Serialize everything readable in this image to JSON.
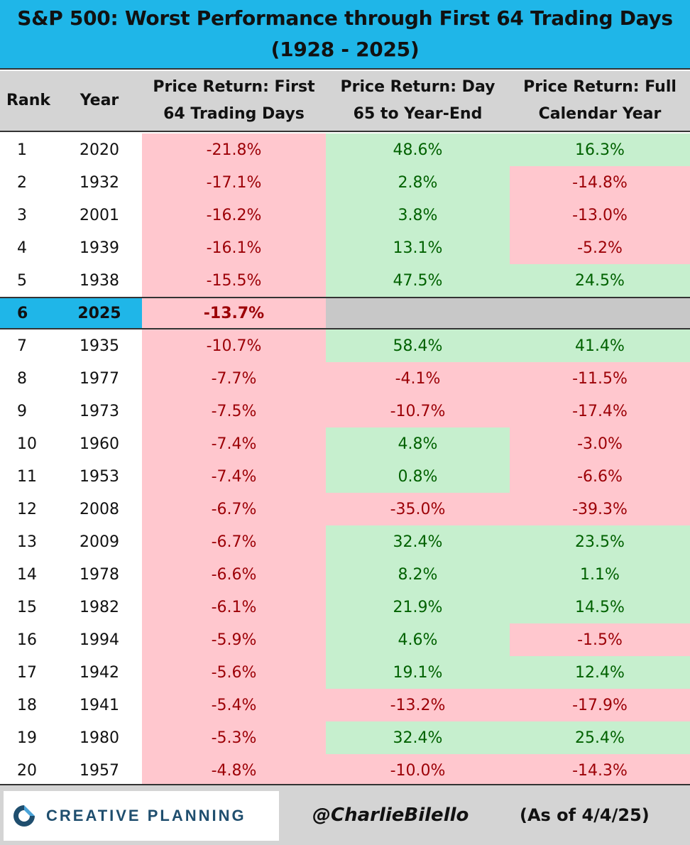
{
  "header": {
    "title_line1": "S&P 500: Worst Performance through First 64 Trading Days",
    "title_line2": "(1928 - 2025)"
  },
  "columns": {
    "rank": "Rank",
    "year": "Year",
    "c1_line1": "Price Return: First",
    "c1_line2": "64 Trading Days",
    "c2_line1": "Price Return: Day",
    "c2_line2": "65 to Year-End",
    "c3_line1": "Price Return: Full",
    "c3_line2": "Calendar  Year"
  },
  "colors": {
    "header_blue": "#1fb6e8",
    "negative_fill": "#ffc7ce",
    "negative_text": "#9c0006",
    "positive_fill": "#c6efce",
    "positive_text": "#006100",
    "na_fill": "#c8c8c8"
  },
  "chart_data": {
    "type": "table",
    "title": "S&P 500: Worst Performance through First 64 Trading Days (1928 - 2025)",
    "columns": [
      "Rank",
      "Year",
      "Price Return: First 64 Trading Days",
      "Price Return: Day 65 to Year-End",
      "Price Return: Full Calendar  Year"
    ],
    "highlight_rank": "6",
    "rows": [
      {
        "rank": "1",
        "year": "2020",
        "c1": "-21.8%",
        "c2": "48.6%",
        "c3": "16.3%"
      },
      {
        "rank": "2",
        "year": "1932",
        "c1": "-17.1%",
        "c2": "2.8%",
        "c3": "-14.8%"
      },
      {
        "rank": "3",
        "year": "2001",
        "c1": "-16.2%",
        "c2": "3.8%",
        "c3": "-13.0%"
      },
      {
        "rank": "4",
        "year": "1939",
        "c1": "-16.1%",
        "c2": "13.1%",
        "c3": "-5.2%"
      },
      {
        "rank": "5",
        "year": "1938",
        "c1": "-15.5%",
        "c2": "47.5%",
        "c3": "24.5%"
      },
      {
        "rank": "6",
        "year": "2025",
        "c1": "-13.7%",
        "c2": "",
        "c3": ""
      },
      {
        "rank": "7",
        "year": "1935",
        "c1": "-10.7%",
        "c2": "58.4%",
        "c3": "41.4%"
      },
      {
        "rank": "8",
        "year": "1977",
        "c1": "-7.7%",
        "c2": "-4.1%",
        "c3": "-11.5%"
      },
      {
        "rank": "9",
        "year": "1973",
        "c1": "-7.5%",
        "c2": "-10.7%",
        "c3": "-17.4%"
      },
      {
        "rank": "10",
        "year": "1960",
        "c1": "-7.4%",
        "c2": "4.8%",
        "c3": "-3.0%"
      },
      {
        "rank": "11",
        "year": "1953",
        "c1": "-7.4%",
        "c2": "0.8%",
        "c3": "-6.6%"
      },
      {
        "rank": "12",
        "year": "2008",
        "c1": "-6.7%",
        "c2": "-35.0%",
        "c3": "-39.3%"
      },
      {
        "rank": "13",
        "year": "2009",
        "c1": "-6.7%",
        "c2": "32.4%",
        "c3": "23.5%"
      },
      {
        "rank": "14",
        "year": "1978",
        "c1": "-6.6%",
        "c2": "8.2%",
        "c3": "1.1%"
      },
      {
        "rank": "15",
        "year": "1982",
        "c1": "-6.1%",
        "c2": "21.9%",
        "c3": "14.5%"
      },
      {
        "rank": "16",
        "year": "1994",
        "c1": "-5.9%",
        "c2": "4.6%",
        "c3": "-1.5%"
      },
      {
        "rank": "17",
        "year": "1942",
        "c1": "-5.6%",
        "c2": "19.1%",
        "c3": "12.4%"
      },
      {
        "rank": "18",
        "year": "1941",
        "c1": "-5.4%",
        "c2": "-13.2%",
        "c3": "-17.9%"
      },
      {
        "rank": "19",
        "year": "1980",
        "c1": "-5.3%",
        "c2": "32.4%",
        "c3": "25.4%"
      },
      {
        "rank": "20",
        "year": "1957",
        "c1": "-4.8%",
        "c2": "-10.0%",
        "c3": "-14.3%"
      }
    ]
  },
  "footer": {
    "logo_text": "CREATIVE PLANNING",
    "logo_icon": "creative-planning-logo-mark",
    "handle": "@CharlieBilello",
    "as_of": "(As of 4/4/25)"
  }
}
